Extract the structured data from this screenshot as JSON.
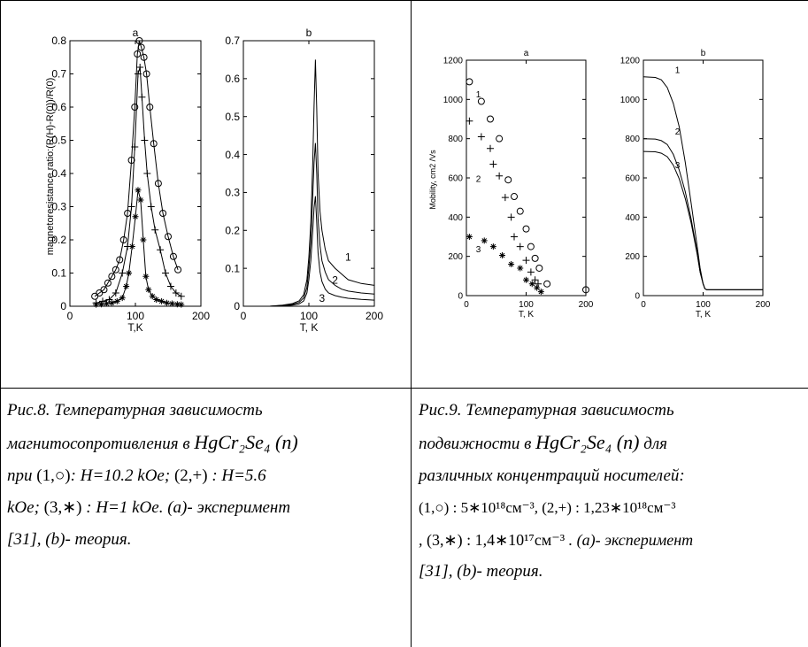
{
  "fig8": {
    "panel_a_title": "a",
    "panel_b_title": "b",
    "ylabel": "magnetoresistance ratio:(R(H)-R(0))/R(0)",
    "a_xlabel": "T,K",
    "b_xlabel": "T, K",
    "a_yticks": [
      "0",
      "0.1",
      "0.2",
      "0.3",
      "0.4",
      "0.5",
      "0.6",
      "0.7",
      "0.8"
    ],
    "b_yticks": [
      "0",
      "0.1",
      "0.2",
      "0.3",
      "0.4",
      "0.5",
      "0.6",
      "0.7"
    ],
    "xticks": [
      "0",
      "100",
      "200"
    ],
    "curve_labels": [
      "1",
      "2",
      "3"
    ],
    "caption_lines": [
      "Рис.8. Температурная зависимость",
      "магнитосопротивления в",
      "при",
      ": H=10.2 kOe;",
      ": H=5.6",
      "kOe;",
      ": H=1 kOe. (a)- эксперимент",
      "[31], (b)- теория."
    ],
    "formula": "HgCr₂Se₄ (n)",
    "marks": [
      "(1,○)",
      "(2,+)",
      "(3,∗)"
    ]
  },
  "fig9": {
    "panel_a_title": "a",
    "panel_b_title": "b",
    "ylabel": "Mobility, cm2 /Vs",
    "xlabel": "T, K",
    "yticks": [
      "0",
      "200",
      "400",
      "600",
      "800",
      "1000",
      "1200"
    ],
    "xticks": [
      "0",
      "100",
      "200"
    ],
    "curve_labels": [
      "1",
      "2",
      "3"
    ],
    "caption_lines": [
      "Рис.9. Температурная зависимость",
      "подвижности в",
      "для",
      "различных концентраций носителей:",
      ". (a)- эксперимент",
      "[31], (b)-  теория."
    ],
    "formula": "HgCr₂Se₄ (n)",
    "conc_1": "(1,○) : 5∗10¹⁸см⁻³",
    "conc_2": "(2,+) : 1,23∗10¹⁸см⁻³",
    "conc_3": "(3,∗) : 1,4∗10¹⁷см⁻³"
  },
  "chart_data": [
    {
      "type": "scatter",
      "title": "a",
      "xlabel": "T,K",
      "ylabel": "magnetoresistance ratio:(R(H)-R(0))/R(0)",
      "xlim": [
        0,
        200
      ],
      "ylim": [
        0,
        0.8
      ],
      "series": [
        {
          "name": "1",
          "marker": "o",
          "x": [
            38,
            45,
            52,
            58,
            64,
            70,
            76,
            82,
            88,
            94,
            99,
            103,
            106,
            109,
            113,
            117,
            122,
            128,
            135,
            142,
            150,
            158,
            165
          ],
          "y": [
            0.03,
            0.04,
            0.05,
            0.07,
            0.09,
            0.11,
            0.14,
            0.2,
            0.28,
            0.44,
            0.6,
            0.76,
            0.8,
            0.78,
            0.75,
            0.7,
            0.6,
            0.49,
            0.37,
            0.28,
            0.21,
            0.15,
            0.11
          ]
        },
        {
          "name": "2",
          "marker": "+",
          "x": [
            40,
            50,
            60,
            70,
            80,
            88,
            94,
            99,
            104,
            107,
            110,
            114,
            118,
            124,
            130,
            138,
            146,
            154,
            162,
            170
          ],
          "y": [
            0.01,
            0.015,
            0.02,
            0.04,
            0.1,
            0.18,
            0.3,
            0.48,
            0.7,
            0.72,
            0.63,
            0.5,
            0.4,
            0.3,
            0.23,
            0.17,
            0.1,
            0.06,
            0.04,
            0.03
          ]
        },
        {
          "name": "3",
          "marker": "*",
          "x": [
            40,
            48,
            56,
            64,
            72,
            80,
            86,
            90,
            95,
            100,
            104,
            108,
            112,
            116,
            120,
            126,
            132,
            140,
            148,
            156,
            164,
            170
          ],
          "y": [
            0.005,
            0.006,
            0.008,
            0.01,
            0.015,
            0.025,
            0.06,
            0.1,
            0.18,
            0.27,
            0.35,
            0.32,
            0.2,
            0.09,
            0.05,
            0.03,
            0.02,
            0.015,
            0.01,
            0.008,
            0.006,
            0.005
          ]
        }
      ]
    },
    {
      "type": "line",
      "title": "b",
      "xlabel": "T, K",
      "xlim": [
        0,
        200
      ],
      "ylim": [
        0,
        0.7
      ],
      "series": [
        {
          "name": "1",
          "x": [
            40,
            60,
            75,
            85,
            92,
            97,
            100,
            103,
            106,
            108,
            110,
            112,
            114,
            117,
            120,
            125,
            130,
            140,
            150,
            160,
            180,
            200
          ],
          "y": [
            0,
            0.003,
            0.007,
            0.014,
            0.03,
            0.07,
            0.13,
            0.22,
            0.38,
            0.53,
            0.65,
            0.52,
            0.35,
            0.25,
            0.2,
            0.15,
            0.12,
            0.1,
            0.085,
            0.07,
            0.06,
            0.055
          ]
        },
        {
          "name": "2",
          "x": [
            40,
            60,
            75,
            85,
            92,
            97,
            100,
            103,
            106,
            108,
            110,
            112,
            114,
            117,
            120,
            125,
            130,
            140,
            150,
            160,
            180,
            200
          ],
          "y": [
            0,
            0.002,
            0.005,
            0.01,
            0.022,
            0.05,
            0.1,
            0.17,
            0.29,
            0.38,
            0.43,
            0.35,
            0.23,
            0.16,
            0.12,
            0.09,
            0.07,
            0.055,
            0.045,
            0.04,
            0.035,
            0.032
          ]
        },
        {
          "name": "3",
          "x": [
            40,
            60,
            75,
            85,
            92,
            97,
            100,
            103,
            106,
            108,
            110,
            112,
            114,
            117,
            120,
            125,
            130,
            140,
            150,
            160,
            180,
            200
          ],
          "y": [
            0,
            0.001,
            0.003,
            0.006,
            0.014,
            0.035,
            0.07,
            0.12,
            0.2,
            0.26,
            0.29,
            0.22,
            0.14,
            0.09,
            0.065,
            0.045,
            0.035,
            0.028,
            0.024,
            0.021,
            0.018,
            0.016
          ]
        }
      ]
    },
    {
      "type": "scatter",
      "title": "a",
      "xlabel": "T, K",
      "ylabel": "Mobility, cm2 /Vs",
      "xlim": [
        0,
        200
      ],
      "ylim": [
        0,
        1200
      ],
      "series": [
        {
          "name": "1",
          "marker": "o",
          "x": [
            5,
            25,
            40,
            55,
            70,
            80,
            90,
            100,
            108,
            115,
            122,
            135,
            200
          ],
          "y": [
            1090,
            990,
            900,
            800,
            590,
            505,
            430,
            340,
            250,
            190,
            140,
            60,
            30
          ]
        },
        {
          "name": "2",
          "marker": "+",
          "x": [
            5,
            25,
            40,
            45,
            55,
            65,
            75,
            80,
            90,
            100,
            108,
            115,
            120
          ],
          "y": [
            890,
            810,
            750,
            670,
            610,
            500,
            400,
            300,
            250,
            180,
            120,
            80,
            60
          ]
        },
        {
          "name": "3",
          "marker": "*",
          "x": [
            5,
            30,
            45,
            60,
            75,
            90,
            100,
            110,
            118,
            125
          ],
          "y": [
            300,
            280,
            250,
            205,
            160,
            140,
            80,
            60,
            40,
            20
          ]
        }
      ]
    },
    {
      "type": "line",
      "title": "b",
      "xlabel": "T, K",
      "xlim": [
        0,
        200
      ],
      "ylim": [
        0,
        1200
      ],
      "series": [
        {
          "name": "1",
          "x": [
            0,
            20,
            30,
            40,
            50,
            60,
            70,
            80,
            90,
            95,
            100,
            103,
            106,
            110,
            120,
            140,
            160,
            200
          ],
          "y": [
            1115,
            1112,
            1100,
            1060,
            980,
            860,
            680,
            470,
            250,
            140,
            60,
            35,
            30,
            30,
            30,
            30,
            30,
            30
          ]
        },
        {
          "name": "2",
          "x": [
            0,
            20,
            30,
            40,
            50,
            60,
            70,
            80,
            90,
            95,
            100,
            103,
            106,
            110,
            120,
            140,
            160,
            200
          ],
          "y": [
            800,
            798,
            790,
            770,
            720,
            640,
            530,
            390,
            220,
            120,
            60,
            35,
            30,
            30,
            30,
            30,
            30,
            30
          ]
        },
        {
          "name": "3",
          "x": [
            0,
            20,
            30,
            40,
            50,
            60,
            70,
            80,
            90,
            95,
            100,
            103,
            106,
            110,
            120,
            140,
            160,
            200
          ],
          "y": [
            735,
            733,
            726,
            708,
            665,
            595,
            495,
            370,
            210,
            120,
            60,
            35,
            30,
            30,
            30,
            30,
            30,
            30
          ]
        }
      ]
    }
  ]
}
